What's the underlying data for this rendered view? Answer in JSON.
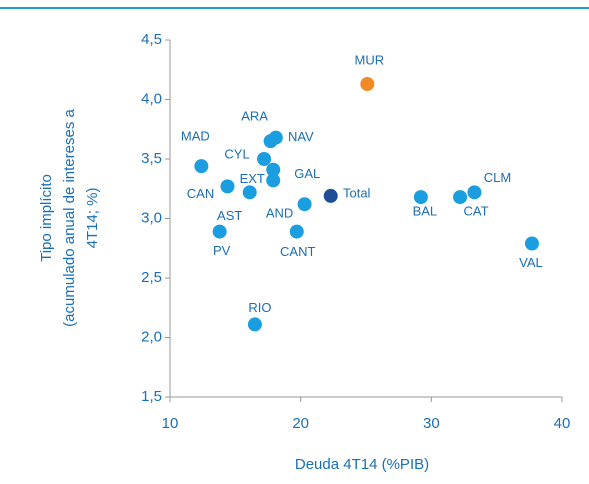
{
  "chart_data": {
    "type": "scatter",
    "xlabel": "Deuda 4T14 (%PIB)",
    "ylabel": [
      "Tipo implícito",
      "(acumulado anual de intereses a",
      "4T14; %)"
    ],
    "xlim": [
      10,
      40
    ],
    "xticks": [
      10,
      20,
      30,
      40
    ],
    "ylim": [
      1.5,
      4.5
    ],
    "yticks": [
      {
        "value": 1.5,
        "label": "1,5"
      },
      {
        "value": 2.0,
        "label": "2,0"
      },
      {
        "value": 2.5,
        "label": "2,5"
      },
      {
        "value": 3.0,
        "label": "3,0"
      },
      {
        "value": 3.5,
        "label": "3,5"
      },
      {
        "value": 4.0,
        "label": "4,0"
      },
      {
        "value": 4.5,
        "label": "4,5"
      }
    ],
    "series": [
      {
        "color": "#1a9ee0",
        "labels": [
          "MAD",
          "ARA",
          "NAV",
          "CYL",
          "GAL",
          "EXT",
          "CAN",
          "AST",
          "AND",
          "CANT",
          "PV",
          "BAL",
          "CAT",
          "CLM",
          "VAL",
          "RIO"
        ],
        "x": [
          12.4,
          17.7,
          18.1,
          17.2,
          17.9,
          17.9,
          14.4,
          16.1,
          20.3,
          19.7,
          13.8,
          29.2,
          32.2,
          33.3,
          37.7,
          16.5
        ],
        "values": [
          3.44,
          3.65,
          3.68,
          3.5,
          3.41,
          3.32,
          3.27,
          3.22,
          3.12,
          2.89,
          2.89,
          3.18,
          3.18,
          3.22,
          2.79,
          2.11
        ]
      },
      {
        "color": "#f08a24",
        "labels": [
          "MUR"
        ],
        "x": [
          25.1
        ],
        "values": [
          4.13
        ]
      },
      {
        "color": "#1f4e99",
        "labels": [
          "Total"
        ],
        "x": [
          22.3
        ],
        "values": [
          3.19
        ]
      }
    ]
  }
}
